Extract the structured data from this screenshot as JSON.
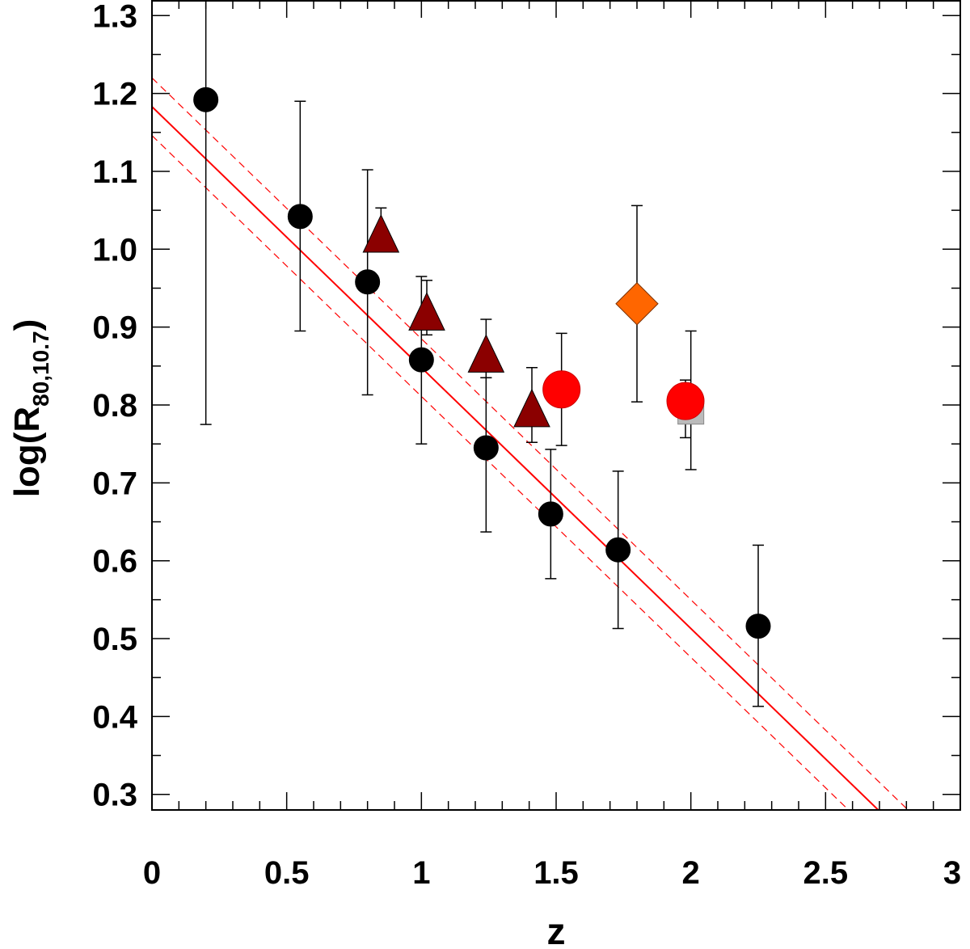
{
  "chart_data": {
    "type": "scatter",
    "xlabel": "z",
    "ylabel": "log(R",
    "ylabel_subscript": "80,10.7",
    "ylabel_close": ")",
    "xlim": [
      0,
      3
    ],
    "ylim": [
      0.28,
      1.32
    ],
    "xticks": [
      0,
      0.5,
      1,
      1.5,
      2,
      2.5,
      3
    ],
    "xtick_labels": [
      "0",
      "0.5",
      "1",
      "1.5",
      "2",
      "2.5",
      "3"
    ],
    "yticks": [
      0.3,
      0.4,
      0.5,
      0.6,
      0.7,
      0.8,
      0.9,
      1.0,
      1.1,
      1.2,
      1.3
    ],
    "ytick_labels": [
      "0.3",
      "0.4",
      "0.5",
      "0.6",
      "0.7",
      "0.8",
      "0.9",
      "1.0",
      "1.1",
      "1.2",
      "1.3"
    ],
    "grid": false,
    "series": [
      {
        "marker": "circle",
        "color": "#000000",
        "points": [
          {
            "x": 0.2,
            "y": 1.192,
            "ylo": 0.775,
            "yhi": 1.32
          },
          {
            "x": 0.55,
            "y": 1.042,
            "ylo": 0.895,
            "yhi": 1.19
          },
          {
            "x": 0.8,
            "y": 0.958,
            "ylo": 0.813,
            "yhi": 1.102
          },
          {
            "x": 1.0,
            "y": 0.858,
            "ylo": 0.75,
            "yhi": 0.965
          },
          {
            "x": 1.24,
            "y": 0.745,
            "ylo": 0.637,
            "yhi": 0.835
          },
          {
            "x": 1.48,
            "y": 0.66,
            "ylo": 0.577,
            "yhi": 0.743
          },
          {
            "x": 1.73,
            "y": 0.614,
            "ylo": 0.513,
            "yhi": 0.715
          },
          {
            "x": 2.25,
            "y": 0.516,
            "ylo": 0.413,
            "yhi": 0.62
          }
        ]
      },
      {
        "marker": "triangle",
        "color": "#8b0000",
        "points": [
          {
            "x": 0.85,
            "y": 1.02,
            "ylo": 1.0,
            "yhi": 1.053
          },
          {
            "x": 1.02,
            "y": 0.92,
            "ylo": 0.89,
            "yhi": 0.96
          },
          {
            "x": 1.24,
            "y": 0.866,
            "ylo": 0.835,
            "yhi": 0.91
          },
          {
            "x": 1.41,
            "y": 0.796,
            "ylo": 0.752,
            "yhi": 0.848
          }
        ]
      },
      {
        "marker": "circle-large",
        "color": "#ff0000",
        "points": [
          {
            "x": 1.52,
            "y": 0.82,
            "ylo": 0.748,
            "yhi": 0.892
          },
          {
            "x": 1.98,
            "y": 0.805,
            "ylo": 0.758,
            "yhi": 0.832
          }
        ]
      },
      {
        "marker": "diamond",
        "color": "#ff6600",
        "points": [
          {
            "x": 1.8,
            "y": 0.93,
            "ylo": 0.804,
            "yhi": 1.056
          }
        ]
      },
      {
        "marker": "square",
        "color": "#bbbbbb",
        "points": [
          {
            "x": 2.0,
            "y": 0.792,
            "ylo": 0.717,
            "yhi": 0.895
          }
        ]
      }
    ],
    "fit": {
      "color": "#ff0000",
      "intercept": 1.183,
      "slope": -0.335,
      "band_offset": 0.037
    }
  }
}
